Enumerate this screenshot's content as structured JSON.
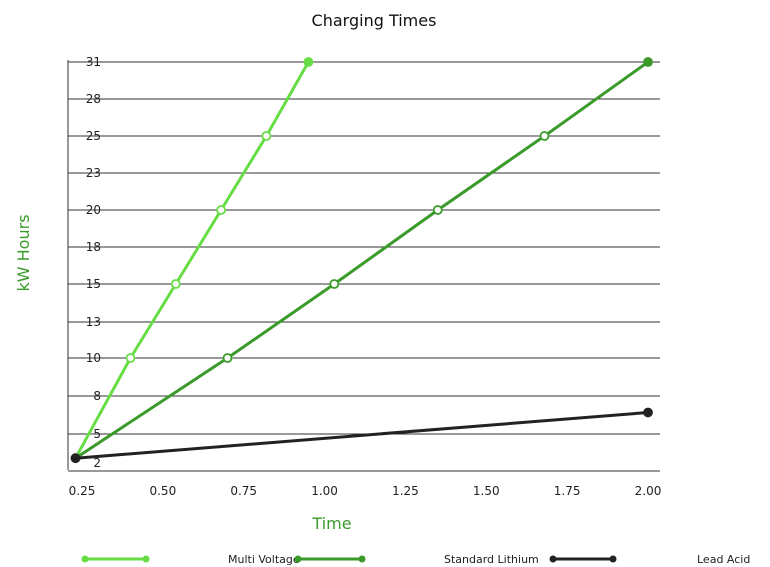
{
  "chart_data": {
    "type": "line",
    "title": "Charging Times",
    "xlabel": "Time",
    "ylabel": "kW Hours",
    "x_ticks": [
      "0.25",
      "0.50",
      "0.75",
      "1.00",
      "1.25",
      "1.50",
      "1.75",
      "2.00"
    ],
    "y_ticks": [
      "2",
      "5",
      "8",
      "10",
      "13",
      "15",
      "18",
      "20",
      "23",
      "25",
      "28",
      "31"
    ],
    "grid": "horizontal",
    "legend_position": "bottom",
    "series": [
      {
        "name": "Multi Voltage",
        "color": "#66dd44",
        "points": [
          [
            0.23,
            2.5
          ],
          [
            0.4,
            10
          ],
          [
            0.54,
            15
          ],
          [
            0.68,
            20
          ],
          [
            0.82,
            25
          ],
          [
            0.95,
            31
          ]
        ],
        "filled_markers": [
          0,
          5
        ]
      },
      {
        "name": "Standard Lithium",
        "color": "#3a9a2a",
        "points": [
          [
            0.23,
            2.5
          ],
          [
            0.7,
            10
          ],
          [
            1.03,
            15
          ],
          [
            1.35,
            20
          ],
          [
            1.68,
            25
          ],
          [
            2.0,
            31
          ]
        ],
        "filled_markers": [
          0,
          5
        ]
      },
      {
        "name": "Lead Acid",
        "color": "#222222",
        "points": [
          [
            0.23,
            2.5
          ],
          [
            2.0,
            6.7
          ]
        ],
        "filled_markers": [
          0,
          1
        ]
      }
    ]
  }
}
